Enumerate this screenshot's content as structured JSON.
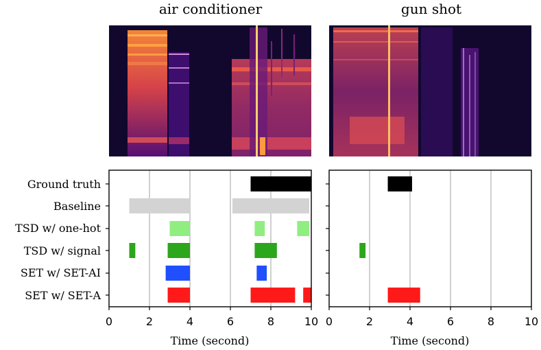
{
  "chart_data": [
    {
      "type": "spectrogram",
      "title": "air conditioner",
      "colormap": "inferno"
    },
    {
      "type": "spectrogram",
      "title": "gun shot",
      "colormap": "inferno"
    },
    {
      "type": "timeline",
      "xlabel": "Time (second)",
      "xlim": [
        0,
        10
      ],
      "xticks": [
        "0",
        "2",
        "4",
        "6",
        "8",
        "10"
      ],
      "grid": true,
      "rows": [
        "Ground truth",
        "Baseline",
        "TSD w/ one-hot",
        "TSD w/ signal",
        "SET w/ SET-AI",
        "SET w/ SET-A"
      ],
      "colors": [
        "#000000",
        "#d3d3d3",
        "#90ee80",
        "#2ca61c",
        "#1f4fff",
        "#ff1a1a"
      ],
      "segments": [
        [
          [
            7.0,
            10.0
          ]
        ],
        [
          [
            1.0,
            4.0
          ],
          [
            6.1,
            9.9
          ]
        ],
        [
          [
            3.0,
            4.0
          ],
          [
            7.2,
            7.7
          ],
          [
            9.3,
            9.9
          ]
        ],
        [
          [
            1.0,
            1.3
          ],
          [
            2.9,
            4.0
          ],
          [
            7.2,
            8.3
          ]
        ],
        [
          [
            2.8,
            4.0
          ],
          [
            7.3,
            7.8
          ]
        ],
        [
          [
            2.9,
            4.0
          ],
          [
            7.0,
            9.2
          ],
          [
            9.6,
            10.0
          ]
        ]
      ]
    },
    {
      "type": "timeline",
      "xlabel": "Time (second)",
      "xlim": [
        0,
        10
      ],
      "xticks": [
        "0",
        "2",
        "4",
        "6",
        "8",
        "10"
      ],
      "grid": true,
      "rows": [
        "Ground truth",
        "Baseline",
        "TSD w/ one-hot",
        "TSD w/ signal",
        "SET w/ SET-AI",
        "SET w/ SET-A"
      ],
      "colors": [
        "#000000",
        "#d3d3d3",
        "#90ee80",
        "#2ca61c",
        "#1f4fff",
        "#ff1a1a"
      ],
      "segments": [
        [
          [
            2.9,
            4.1
          ]
        ],
        [],
        [],
        [
          [
            1.5,
            1.8
          ]
        ],
        [],
        [
          [
            2.9,
            4.5
          ]
        ]
      ]
    }
  ]
}
